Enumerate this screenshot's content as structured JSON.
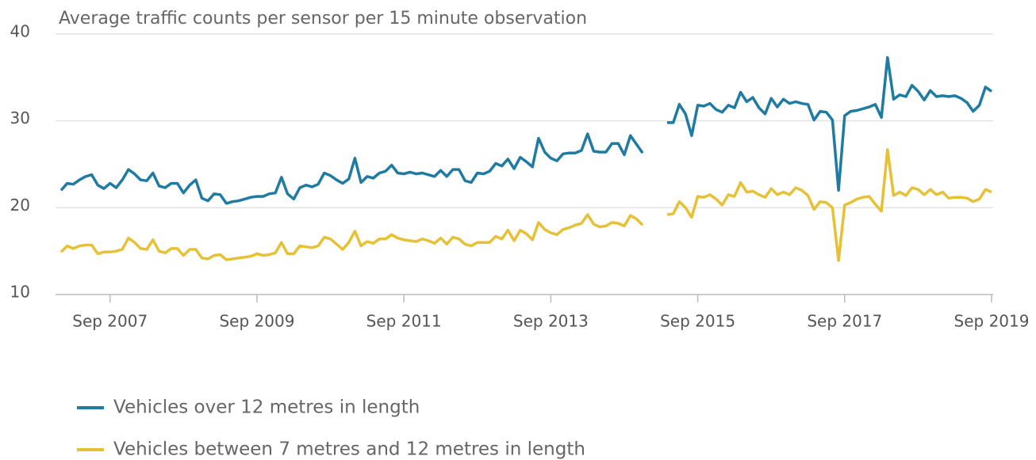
{
  "chart_data": {
    "type": "line",
    "title": "Average traffic counts per sensor per 15 minute observation",
    "x": [
      "2007-01",
      "2007-02",
      "2007-03",
      "2007-04",
      "2007-05",
      "2007-06",
      "2007-07",
      "2007-08",
      "2007-09",
      "2007-10",
      "2007-11",
      "2007-12",
      "2008-01",
      "2008-02",
      "2008-03",
      "2008-04",
      "2008-05",
      "2008-06",
      "2008-07",
      "2008-08",
      "2008-09",
      "2008-10",
      "2008-11",
      "2008-12",
      "2009-01",
      "2009-02",
      "2009-03",
      "2009-04",
      "2009-05",
      "2009-06",
      "2009-07",
      "2009-08",
      "2009-09",
      "2009-10",
      "2009-11",
      "2009-12",
      "2010-01",
      "2010-02",
      "2010-03",
      "2010-04",
      "2010-05",
      "2010-06",
      "2010-07",
      "2010-08",
      "2010-09",
      "2010-10",
      "2010-11",
      "2010-12",
      "2011-01",
      "2011-02",
      "2011-03",
      "2011-04",
      "2011-05",
      "2011-06",
      "2011-07",
      "2011-08",
      "2011-09",
      "2011-10",
      "2011-11",
      "2011-12",
      "2012-01",
      "2012-02",
      "2012-03",
      "2012-04",
      "2012-05",
      "2012-06",
      "2012-07",
      "2012-08",
      "2012-09",
      "2012-10",
      "2012-11",
      "2012-12",
      "2013-01",
      "2013-02",
      "2013-03",
      "2013-04",
      "2013-05",
      "2013-06",
      "2013-07",
      "2013-08",
      "2013-09",
      "2013-10",
      "2013-11",
      "2013-12",
      "2014-01",
      "2014-02",
      "2014-03",
      "2014-04",
      "2014-05",
      "2014-06",
      "2014-07",
      "2014-08",
      "2014-09",
      "2014-10",
      "2014-11",
      "2014-12",
      "2015-01",
      "2015-02",
      "2015-03",
      "2015-04",
      "2015-05",
      "2015-06",
      "2015-07",
      "2015-08",
      "2015-09",
      "2015-10",
      "2015-11",
      "2015-12",
      "2016-01",
      "2016-02",
      "2016-03",
      "2016-04",
      "2016-05",
      "2016-06",
      "2016-07",
      "2016-08",
      "2016-09",
      "2016-10",
      "2016-11",
      "2016-12",
      "2017-01",
      "2017-02",
      "2017-03",
      "2017-04",
      "2017-05",
      "2017-06",
      "2017-07",
      "2017-08",
      "2017-09",
      "2017-10",
      "2017-11",
      "2017-12",
      "2018-01",
      "2018-02",
      "2018-03",
      "2018-04",
      "2018-05",
      "2018-06",
      "2018-07",
      "2018-08",
      "2018-09",
      "2018-10",
      "2018-11",
      "2018-12",
      "2019-01",
      "2019-02",
      "2019-03",
      "2019-04",
      "2019-05",
      "2019-06",
      "2019-07",
      "2019-08",
      "2019-09"
    ],
    "series": [
      {
        "name": "Vehicles over 12 metres in length",
        "color": "#1f7ba1",
        "values": [
          22.0,
          22.8,
          22.7,
          23.2,
          23.6,
          23.8,
          22.6,
          22.2,
          22.8,
          22.3,
          23.2,
          24.4,
          23.9,
          23.2,
          23.1,
          24.0,
          22.5,
          22.3,
          22.8,
          22.8,
          21.7,
          22.6,
          23.2,
          21.1,
          20.8,
          21.6,
          21.5,
          20.5,
          20.7,
          20.8,
          21.0,
          21.2,
          21.3,
          21.3,
          21.6,
          21.7,
          23.5,
          21.6,
          21.0,
          22.3,
          22.6,
          22.4,
          22.7,
          24.0,
          23.7,
          23.2,
          22.8,
          23.3,
          25.7,
          22.9,
          23.6,
          23.4,
          24.0,
          24.2,
          24.9,
          24.0,
          23.9,
          24.1,
          23.9,
          24.0,
          23.8,
          23.6,
          24.3,
          23.6,
          24.4,
          24.4,
          23.1,
          22.9,
          24.0,
          23.9,
          24.2,
          25.1,
          24.8,
          25.6,
          24.5,
          25.8,
          25.3,
          24.7,
          28.0,
          26.4,
          25.7,
          25.4,
          26.2,
          26.3,
          26.3,
          26.6,
          28.5,
          26.5,
          26.4,
          26.4,
          27.4,
          27.4,
          26.1,
          28.3,
          27.3,
          26.3,
          null,
          null,
          null,
          29.8,
          29.8,
          31.9,
          30.8,
          28.3,
          31.8,
          31.7,
          32.0,
          31.3,
          31.0,
          31.8,
          31.5,
          33.3,
          32.2,
          32.7,
          31.5,
          30.8,
          32.6,
          31.6,
          32.5,
          32.0,
          32.2,
          32.0,
          31.9,
          30.1,
          31.1,
          31.0,
          30.1,
          22.0,
          30.6,
          31.1,
          31.2,
          31.4,
          31.6,
          31.9,
          30.4,
          37.3,
          32.5,
          33.0,
          32.8,
          34.1,
          33.4,
          32.4,
          33.5,
          32.8,
          32.9,
          32.8,
          32.9,
          32.6,
          32.1,
          31.1,
          31.8,
          33.9,
          33.4
        ]
      },
      {
        "name": "Vehicles between 7 metres and 12 metres in length",
        "color": "#e6c135",
        "values": [
          14.9,
          15.6,
          15.3,
          15.6,
          15.7,
          15.7,
          14.7,
          14.9,
          14.9,
          15.0,
          15.2,
          16.5,
          16.0,
          15.3,
          15.2,
          16.3,
          15.0,
          14.8,
          15.3,
          15.3,
          14.5,
          15.2,
          15.2,
          14.2,
          14.1,
          14.5,
          14.6,
          14.0,
          14.1,
          14.2,
          14.3,
          14.4,
          14.7,
          14.5,
          14.6,
          14.8,
          16.0,
          14.7,
          14.7,
          15.6,
          15.5,
          15.4,
          15.6,
          16.6,
          16.4,
          15.8,
          15.2,
          16.0,
          17.3,
          15.6,
          16.1,
          15.9,
          16.4,
          16.4,
          16.9,
          16.5,
          16.3,
          16.2,
          16.1,
          16.4,
          16.2,
          15.9,
          16.5,
          15.8,
          16.6,
          16.4,
          15.8,
          15.6,
          16.0,
          16.0,
          16.0,
          16.7,
          16.4,
          17.4,
          16.2,
          17.4,
          17.0,
          16.3,
          18.3,
          17.5,
          17.1,
          16.9,
          17.5,
          17.7,
          18.0,
          18.2,
          19.2,
          18.1,
          17.8,
          17.9,
          18.3,
          18.2,
          17.9,
          19.1,
          18.7,
          18.0,
          null,
          null,
          null,
          19.2,
          19.3,
          20.7,
          20.0,
          18.9,
          21.3,
          21.2,
          21.5,
          21.0,
          20.3,
          21.5,
          21.3,
          22.9,
          21.8,
          21.9,
          21.5,
          21.2,
          22.2,
          21.5,
          21.8,
          21.5,
          22.3,
          22.0,
          21.4,
          19.8,
          20.7,
          20.6,
          20.0,
          13.9,
          20.3,
          20.6,
          21.0,
          21.2,
          21.3,
          20.4,
          19.6,
          26.7,
          21.4,
          21.8,
          21.4,
          22.3,
          22.1,
          21.5,
          22.1,
          21.5,
          21.8,
          21.1,
          21.2,
          21.2,
          21.1,
          20.7,
          21.0,
          22.1,
          21.8
        ]
      }
    ],
    "ylim": [
      10,
      40
    ],
    "yticks": [
      10,
      20,
      30,
      40
    ],
    "xlim": [
      "2007-01",
      "2019-09"
    ],
    "xticks": [
      {
        "value": "2007-09",
        "label": "Sep 2007"
      },
      {
        "value": "2009-09",
        "label": "Sep 2009"
      },
      {
        "value": "2011-09",
        "label": "Sep 2011"
      },
      {
        "value": "2013-09",
        "label": "Sep 2013"
      },
      {
        "value": "2015-09",
        "label": "Sep 2015"
      },
      {
        "value": "2017-09",
        "label": "Sep 2017"
      },
      {
        "value": "2019-09",
        "label": "Sep 2019"
      }
    ],
    "grid": true,
    "legend": "bottom"
  }
}
